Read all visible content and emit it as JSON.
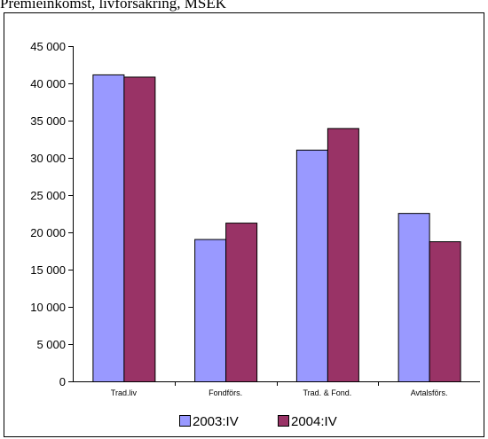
{
  "caption": "Premieinkomst, livförsäkring, MSEK",
  "colors": {
    "series_2003": "#9999ff",
    "series_2004": "#993366"
  },
  "chart_data": {
    "type": "bar",
    "title": "Premieinkomst, livförsäkring, MSEK",
    "categories": [
      "Trad.liv",
      "Fondförs.",
      "Trad. & Fond.",
      "Avtalsförs."
    ],
    "series": [
      {
        "name": "2003:IV",
        "values": [
          41200,
          19100,
          31100,
          22600
        ]
      },
      {
        "name": "2004:IV",
        "values": [
          40900,
          21300,
          34000,
          18800
        ]
      }
    ],
    "ylim": [
      0,
      45000
    ],
    "yticks": [
      0,
      5000,
      10000,
      15000,
      20000,
      25000,
      30000,
      35000,
      40000,
      45000
    ],
    "ytick_labels": [
      "0",
      "5 000",
      "10 000",
      "15 000",
      "20 000",
      "25 000",
      "30 000",
      "35 000",
      "40 000",
      "45 000"
    ],
    "grid": false,
    "legend": "bottom"
  }
}
